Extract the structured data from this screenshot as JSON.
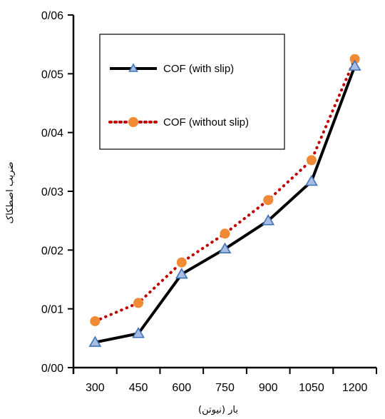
{
  "chart_data": {
    "type": "line",
    "title": "",
    "xlabel": "بار (نیوتن)",
    "ylabel": "ضریب اصطکاک",
    "categories": [
      "300",
      "450",
      "600",
      "750",
      "900",
      "1050",
      "1200"
    ],
    "ylim": [
      0,
      0.06
    ],
    "yticks": [
      0,
      0.01,
      0.02,
      0.03,
      0.04,
      0.05,
      0.06
    ],
    "ytick_labels": [
      "0/00",
      "0/01",
      "0/02",
      "0/03",
      "0/04",
      "0/05",
      "0/06"
    ],
    "grid": false,
    "legend_position": "top-left",
    "series": [
      {
        "name": "COF (with slip)",
        "values": [
          0.0043,
          0.0058,
          0.0159,
          0.0202,
          0.025,
          0.0317,
          0.0513
        ],
        "line_style": "solid",
        "line_color": "#000000",
        "marker": "triangle",
        "marker_fill": "#a7bde3",
        "marker_stroke": "#3f73b6"
      },
      {
        "name": "COF (without slip)",
        "values": [
          0.0079,
          0.011,
          0.0179,
          0.0228,
          0.0285,
          0.0353,
          0.0525
        ],
        "line_style": "dotted",
        "line_color": "#c00000",
        "marker": "circle",
        "marker_fill": "#f08a35",
        "marker_stroke": "#f08a35"
      }
    ]
  }
}
